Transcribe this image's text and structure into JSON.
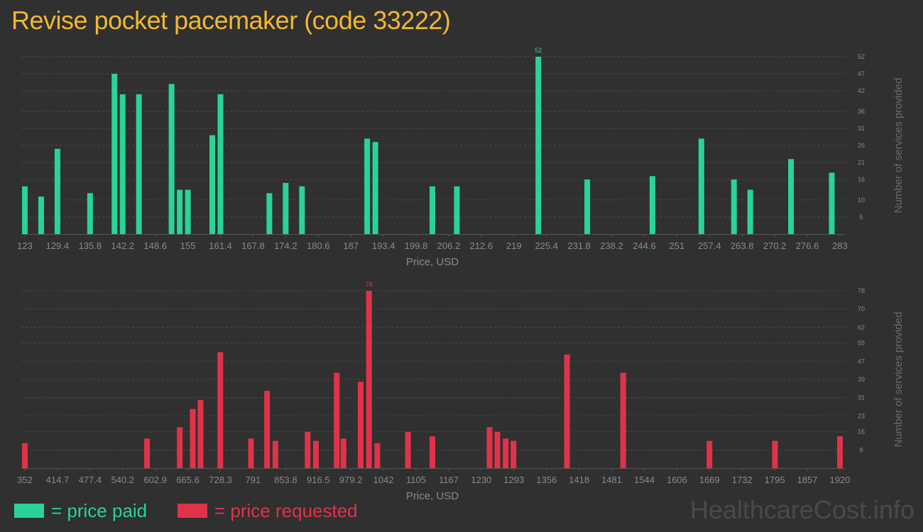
{
  "title": "Revise pocket pacemaker (code 33222)",
  "brand": "HealthcareCost.info",
  "legend": {
    "paid": "= price paid",
    "requested": "= price requested"
  },
  "colors": {
    "background": "#303030",
    "title": "#f2b632",
    "paid": "#2ad396",
    "requested": "#e0334a",
    "axis_text": "#8a8a8a",
    "grid": "#4a4a4a"
  },
  "chart_data": [
    {
      "type": "bar",
      "xlabel": "Price, USD",
      "ylabel": "Number of services provided",
      "xlim": [
        123,
        283
      ],
      "ylim": [
        0,
        52
      ],
      "x_ticks": [
        "123",
        "129.4",
        "135.8",
        "142.2",
        "148.6",
        "155",
        "161.4",
        "167.8",
        "174.2",
        "180.6",
        "187",
        "193.4",
        "199.8",
        "206.2",
        "212.6",
        "219",
        "225.4",
        "231.8",
        "238.2",
        "244.6",
        "251",
        "257.4",
        "263.8",
        "270.2",
        "276.6",
        "283"
      ],
      "y_ticks": [
        "5",
        "10",
        "16",
        "21",
        "26",
        "31",
        "36",
        "42",
        "47",
        "52"
      ],
      "grid": true,
      "max_label": "52",
      "series": [
        {
          "color": "#2ad396",
          "x": [
            123,
            126.2,
            129.4,
            135.8,
            140.6,
            142.2,
            145.4,
            151.8,
            153.4,
            155,
            159.8,
            161.4,
            171,
            174.2,
            177.4,
            190.2,
            191.8,
            203,
            207.8,
            223.8,
            233.4,
            246.2,
            255.8,
            262.2,
            265.4,
            273.4,
            281.4
          ],
          "values": [
            14,
            11,
            25,
            12,
            47,
            41,
            41,
            44,
            13,
            13,
            29,
            41,
            12,
            15,
            14,
            28,
            27,
            14,
            14,
            52,
            16,
            17,
            28,
            16,
            13,
            22,
            18
          ]
        }
      ]
    },
    {
      "type": "bar",
      "xlabel": "Price, USD",
      "ylabel": "Number of services provided",
      "xlim": [
        352,
        1920
      ],
      "ylim": [
        0,
        78
      ],
      "x_ticks": [
        "352",
        "414.7",
        "477.4",
        "540.2",
        "602.9",
        "665.6",
        "728.3",
        "791",
        "853.8",
        "916.5",
        "979.2",
        "1042",
        "1105",
        "1167",
        "1230",
        "1293",
        "1356",
        "1418",
        "1481",
        "1544",
        "1606",
        "1669",
        "1732",
        "1795",
        "1857",
        "1920"
      ],
      "y_ticks": [
        "8",
        "16",
        "23",
        "31",
        "39",
        "47",
        "55",
        "62",
        "70",
        "78"
      ],
      "grid": true,
      "max_label": "78",
      "series": [
        {
          "color": "#e0334a",
          "x": [
            352,
            587,
            650,
            675,
            690,
            728,
            787,
            818,
            834,
            896,
            912,
            952,
            965,
            998,
            1014,
            1030,
            1089,
            1136,
            1246,
            1261,
            1277,
            1292,
            1395,
            1503,
            1669,
            1795,
            1920
          ],
          "values": [
            11,
            13,
            18,
            26,
            30,
            51,
            13,
            34,
            12,
            16,
            12,
            42,
            13,
            38,
            78,
            11,
            16,
            14,
            18,
            16,
            13,
            12,
            50,
            42,
            12,
            12,
            14
          ]
        }
      ]
    }
  ]
}
